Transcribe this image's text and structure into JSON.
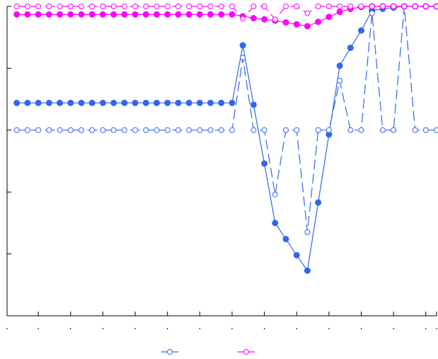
{
  "chart_data": {
    "type": "line",
    "title": "",
    "xlabel": "",
    "ylabel": "",
    "grid": false,
    "legend_placement": "bottom",
    "x": [
      1,
      2,
      3,
      4,
      5,
      6,
      7,
      8,
      9,
      10,
      11,
      12,
      13,
      14,
      15,
      16,
      17,
      18,
      19,
      20,
      21,
      22,
      23,
      24,
      25,
      26,
      27,
      28,
      29,
      30,
      31,
      32,
      33,
      34,
      35,
      36,
      37,
      38,
      39,
      40
    ],
    "xlim": [
      0.1,
      40
    ],
    "ylim": [
      0,
      1
    ],
    "x_ticks": [
      0,
      3,
      6,
      9,
      12,
      15,
      18,
      21,
      24,
      27,
      30,
      33,
      36,
      39,
      40
    ],
    "y_ticks": [
      0,
      0.2,
      0.4,
      0.6,
      0.8,
      1.0
    ],
    "series": [
      {
        "name": "",
        "color": "#3366ee",
        "line_style": "solid",
        "marker": "filled-circle",
        "values": [
          0.688,
          0.688,
          0.688,
          0.688,
          0.688,
          0.688,
          0.688,
          0.688,
          0.688,
          0.688,
          0.688,
          0.688,
          0.688,
          0.688,
          0.688,
          0.688,
          0.688,
          0.688,
          0.688,
          0.688,
          0.688,
          0.874,
          0.682,
          0.492,
          0.3,
          0.248,
          0.196,
          0.146,
          0.366,
          0.586,
          0.808,
          0.866,
          0.922,
          0.986,
          0.992,
          0.996,
          1.0,
          1.0,
          1.0,
          1.0
        ]
      },
      {
        "name": "",
        "color": "#3366ee",
        "line_style": "dashed",
        "marker": "open-circle",
        "values": [
          0.6,
          0.6,
          0.6,
          0.6,
          0.6,
          0.6,
          0.6,
          0.6,
          0.6,
          0.6,
          0.6,
          0.6,
          0.6,
          0.6,
          0.6,
          0.6,
          0.6,
          0.6,
          0.6,
          0.6,
          0.6,
          0.834,
          0.6,
          0.6,
          0.392,
          0.6,
          0.6,
          0.27,
          0.6,
          0.6,
          0.76,
          0.6,
          0.6,
          0.978,
          0.6,
          0.6,
          1.0,
          0.6,
          0.6,
          0.6
        ]
      },
      {
        "name": "",
        "color": "#ff00ff",
        "line_style": "solid",
        "marker": "filled-circle",
        "values": [
          0.974,
          0.974,
          0.974,
          0.974,
          0.974,
          0.974,
          0.974,
          0.974,
          0.974,
          0.974,
          0.974,
          0.974,
          0.974,
          0.974,
          0.974,
          0.974,
          0.974,
          0.974,
          0.974,
          0.974,
          0.974,
          0.968,
          0.962,
          0.958,
          0.954,
          0.948,
          0.942,
          0.936,
          0.95,
          0.966,
          0.982,
          0.992,
          0.998,
          1.0,
          1.0,
          1.0,
          1.0,
          1.0,
          1.0,
          1.0
        ]
      },
      {
        "name": "",
        "color": "#ff00ff",
        "line_style": "dashed",
        "marker": "open-circle",
        "values": [
          1.0,
          1.0,
          1.0,
          1.0,
          1.0,
          1.0,
          1.0,
          1.0,
          1.0,
          1.0,
          1.0,
          1.0,
          1.0,
          1.0,
          1.0,
          1.0,
          1.0,
          1.0,
          1.0,
          1.0,
          1.0,
          0.96,
          1.0,
          1.0,
          0.958,
          1.0,
          1.0,
          0.978,
          1.0,
          1.0,
          1.0,
          1.0,
          1.0,
          1.0,
          1.0,
          1.0,
          1.0,
          1.0,
          1.0,
          1.0
        ]
      }
    ],
    "legend": [
      {
        "name": "",
        "color": "#3366ee"
      },
      {
        "name": "",
        "color": "#ff00ff"
      }
    ]
  }
}
